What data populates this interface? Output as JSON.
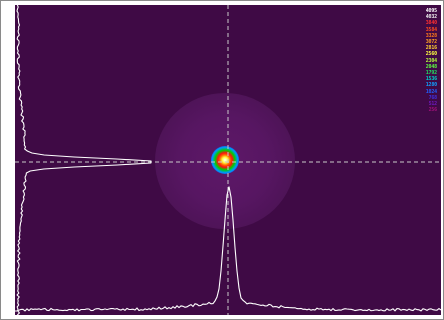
{
  "colors": {
    "background": "#3f0a45",
    "crosshair": "#c9c9c9",
    "profile": "#ffffff",
    "frame": "#8a8a8a"
  },
  "beam": {
    "label_crosshair": "dashed crosshair through beam centroid"
  },
  "icons": {
    "spot": "beam-spot-icon"
  },
  "color_scale": [
    {
      "label": "4095",
      "color": "#ffffff"
    },
    {
      "label": "4032",
      "color": "#f0f0f0"
    },
    {
      "label": "3840",
      "color": "#ff3030"
    },
    {
      "label": "3584",
      "color": "#ff4a1e"
    },
    {
      "label": "3328",
      "color": "#ff7a1a"
    },
    {
      "label": "3072",
      "color": "#ffa020"
    },
    {
      "label": "2816",
      "color": "#ffd030"
    },
    {
      "label": "2560",
      "color": "#ffff40"
    },
    {
      "label": "2304",
      "color": "#b8ff3a"
    },
    {
      "label": "2048",
      "color": "#5cff40"
    },
    {
      "label": "1792",
      "color": "#20e060"
    },
    {
      "label": "1536",
      "color": "#00d0c8"
    },
    {
      "label": "1280",
      "color": "#10a0ff"
    },
    {
      "label": "1024",
      "color": "#2060ff"
    },
    {
      "label": "768",
      "color": "#4030e0"
    },
    {
      "label": "512",
      "color": "#7018c0"
    },
    {
      "label": "256",
      "color": "#a0107a"
    }
  ]
}
